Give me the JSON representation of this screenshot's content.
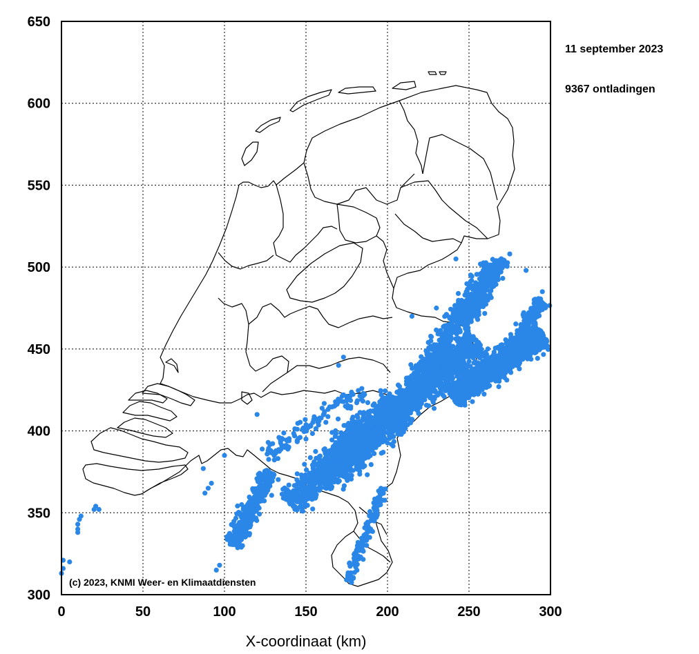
{
  "header": {
    "date": "11 september 2023",
    "count_text": "9367 ontladingen"
  },
  "credit": "(c) 2023, KNMI Weer- en Klimaatdiensten",
  "colors": {
    "strike": "#2a87e8",
    "border": "#000000",
    "grid": "#000000"
  },
  "chart_data": {
    "type": "scatter",
    "xlabel": "X-coordinaat (km)",
    "ylabel": "",
    "xlim": [
      0,
      300
    ],
    "ylim": [
      300,
      650
    ],
    "xticks": [
      "0",
      "50",
      "100",
      "150",
      "200",
      "250",
      "300"
    ],
    "yticks": [
      "300",
      "350",
      "400",
      "450",
      "500",
      "550",
      "600",
      "650"
    ],
    "grid": true,
    "series": [
      {
        "clusters": [
          {
            "x1": 105,
            "y1": 330,
            "x2": 128,
            "y2": 375,
            "w": 11,
            "n": 420
          },
          {
            "x1": 140,
            "y1": 355,
            "x2": 205,
            "y2": 420,
            "w": 18,
            "n": 900
          },
          {
            "x1": 160,
            "y1": 370,
            "x2": 255,
            "y2": 455,
            "w": 20,
            "n": 1500
          },
          {
            "x1": 200,
            "y1": 400,
            "x2": 265,
            "y2": 500,
            "w": 16,
            "n": 900
          },
          {
            "x1": 240,
            "y1": 420,
            "x2": 295,
            "y2": 460,
            "w": 16,
            "n": 1300
          },
          {
            "x1": 175,
            "y1": 308,
            "x2": 198,
            "y2": 365,
            "w": 6,
            "n": 160
          },
          {
            "x1": 250,
            "y1": 470,
            "x2": 270,
            "y2": 505,
            "w": 9,
            "n": 200
          },
          {
            "x1": 125,
            "y1": 385,
            "x2": 185,
            "y2": 425,
            "w": 12,
            "n": 120
          },
          {
            "x1": 270,
            "y1": 440,
            "x2": 295,
            "y2": 480,
            "w": 10,
            "n": 200
          }
        ],
        "points": [
          {
            "x": 10,
            "y": 340
          },
          {
            "x": 10,
            "y": 343
          },
          {
            "x": 11,
            "y": 346
          },
          {
            "x": 12,
            "y": 348
          },
          {
            "x": 10,
            "y": 338
          },
          {
            "x": 20,
            "y": 352
          },
          {
            "x": 21,
            "y": 354
          },
          {
            "x": 23,
            "y": 352
          },
          {
            "x": 0,
            "y": 313
          },
          {
            "x": 1,
            "y": 316
          },
          {
            "x": 1,
            "y": 321
          },
          {
            "x": 5,
            "y": 320
          },
          {
            "x": 87,
            "y": 377
          },
          {
            "x": 90,
            "y": 365
          },
          {
            "x": 92,
            "y": 368
          },
          {
            "x": 88,
            "y": 362
          },
          {
            "x": 95,
            "y": 315
          },
          {
            "x": 97,
            "y": 318
          },
          {
            "x": 120,
            "y": 410
          },
          {
            "x": 170,
            "y": 440
          },
          {
            "x": 173,
            "y": 445
          },
          {
            "x": 242,
            "y": 505
          },
          {
            "x": 275,
            "y": 508
          },
          {
            "x": 285,
            "y": 498
          },
          {
            "x": 295,
            "y": 485
          },
          {
            "x": 290,
            "y": 480
          },
          {
            "x": 230,
            "y": 475
          },
          {
            "x": 215,
            "y": 470
          },
          {
            "x": 100,
            "y": 385
          },
          {
            "x": 135,
            "y": 395
          },
          {
            "x": 150,
            "y": 395
          }
        ]
      }
    ],
    "annotations": [
      "11 september 2023",
      "9367 ontladingen"
    ]
  }
}
